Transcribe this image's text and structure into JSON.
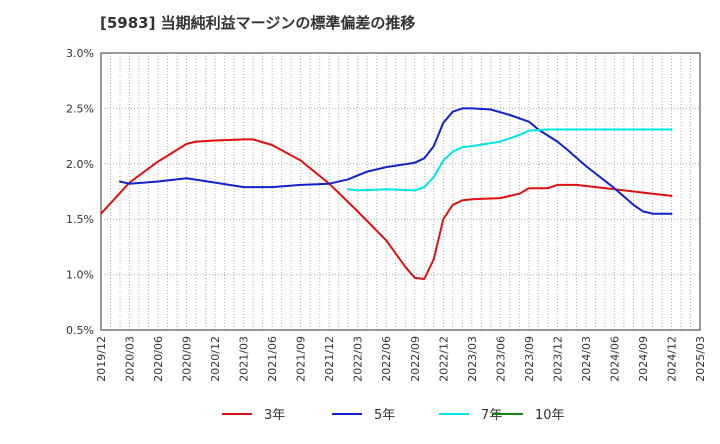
{
  "chart_data": {
    "type": "line",
    "title": "[5983]  当期純利益マージンの標準偏差の推移",
    "xlabel": "",
    "ylabel": "",
    "x_ticks": [
      "2019/12",
      "2020/03",
      "2020/06",
      "2020/09",
      "2020/12",
      "2021/03",
      "2021/06",
      "2021/09",
      "2021/12",
      "2022/03",
      "2022/06",
      "2022/09",
      "2022/12",
      "2023/03",
      "2023/06",
      "2023/09",
      "2023/12",
      "2024/03",
      "2024/06",
      "2024/09",
      "2024/12",
      "2025/03"
    ],
    "y_ticks": [
      "0.5%",
      "1.0%",
      "1.5%",
      "2.0%",
      "2.5%",
      "3.0%"
    ],
    "ylim": [
      0.5,
      3.0
    ],
    "grid": true,
    "legend_position": "bottom",
    "series": [
      {
        "name": "3年",
        "color": "#dd1111",
        "points": [
          [
            "2019/12",
            1.55
          ],
          [
            "2020/03",
            1.83
          ],
          [
            "2020/06",
            2.02
          ],
          [
            "2020/09",
            2.18
          ],
          [
            "2020/10",
            2.2
          ],
          [
            "2020/12",
            2.21
          ],
          [
            "2021/03",
            2.22
          ],
          [
            "2021/04",
            2.22
          ],
          [
            "2021/06",
            2.17
          ],
          [
            "2021/09",
            2.03
          ],
          [
            "2021/12",
            1.82
          ],
          [
            "2022/03",
            1.57
          ],
          [
            "2022/06",
            1.31
          ],
          [
            "2022/08",
            1.07
          ],
          [
            "2022/09",
            0.97
          ],
          [
            "2022/10",
            0.96
          ],
          [
            "2022/11",
            1.14
          ],
          [
            "2022/12",
            1.5
          ],
          [
            "2023/01",
            1.63
          ],
          [
            "2023/02",
            1.67
          ],
          [
            "2023/03",
            1.68
          ],
          [
            "2023/06",
            1.69
          ],
          [
            "2023/08",
            1.73
          ],
          [
            "2023/09",
            1.78
          ],
          [
            "2023/11",
            1.78
          ],
          [
            "2023/12",
            1.81
          ],
          [
            "2024/02",
            1.81
          ],
          [
            "2024/06",
            1.77
          ],
          [
            "2024/09",
            1.74
          ],
          [
            "2024/12",
            1.71
          ]
        ]
      },
      {
        "name": "5年",
        "color": "#1122cc",
        "points": [
          [
            "2020/02",
            1.84
          ],
          [
            "2020/03",
            1.82
          ],
          [
            "2020/06",
            1.84
          ],
          [
            "2020/09",
            1.87
          ],
          [
            "2020/12",
            1.83
          ],
          [
            "2021/03",
            1.79
          ],
          [
            "2021/06",
            1.79
          ],
          [
            "2021/09",
            1.81
          ],
          [
            "2021/12",
            1.82
          ],
          [
            "2022/02",
            1.86
          ],
          [
            "2022/04",
            1.93
          ],
          [
            "2022/06",
            1.97
          ],
          [
            "2022/09",
            2.01
          ],
          [
            "2022/10",
            2.05
          ],
          [
            "2022/11",
            2.16
          ],
          [
            "2022/12",
            2.37
          ],
          [
            "2023/01",
            2.47
          ],
          [
            "2023/02",
            2.5
          ],
          [
            "2023/03",
            2.5
          ],
          [
            "2023/05",
            2.49
          ],
          [
            "2023/07",
            2.44
          ],
          [
            "2023/09",
            2.38
          ],
          [
            "2023/10",
            2.31
          ],
          [
            "2023/12",
            2.2
          ],
          [
            "2024/01",
            2.13
          ],
          [
            "2024/03",
            1.98
          ],
          [
            "2024/06",
            1.78
          ],
          [
            "2024/08",
            1.63
          ],
          [
            "2024/09",
            1.57
          ],
          [
            "2024/10",
            1.55
          ],
          [
            "2024/12",
            1.55
          ]
        ]
      },
      {
        "name": "7年",
        "color": "#00e5e5",
        "points": [
          [
            "2022/02",
            1.77
          ],
          [
            "2022/03",
            1.76
          ],
          [
            "2022/06",
            1.77
          ],
          [
            "2022/09",
            1.76
          ],
          [
            "2022/10",
            1.79
          ],
          [
            "2022/11",
            1.88
          ],
          [
            "2022/12",
            2.03
          ],
          [
            "2023/01",
            2.11
          ],
          [
            "2023/02",
            2.15
          ],
          [
            "2023/03",
            2.16
          ],
          [
            "2023/06",
            2.2
          ],
          [
            "2023/08",
            2.26
          ],
          [
            "2023/09",
            2.3
          ],
          [
            "2023/11",
            2.31
          ],
          [
            "2024/03",
            2.31
          ],
          [
            "2024/06",
            2.31
          ],
          [
            "2024/09",
            2.31
          ],
          [
            "2024/12",
            2.31
          ]
        ]
      },
      {
        "name": "10年",
        "color": "#118811",
        "points": []
      }
    ]
  }
}
